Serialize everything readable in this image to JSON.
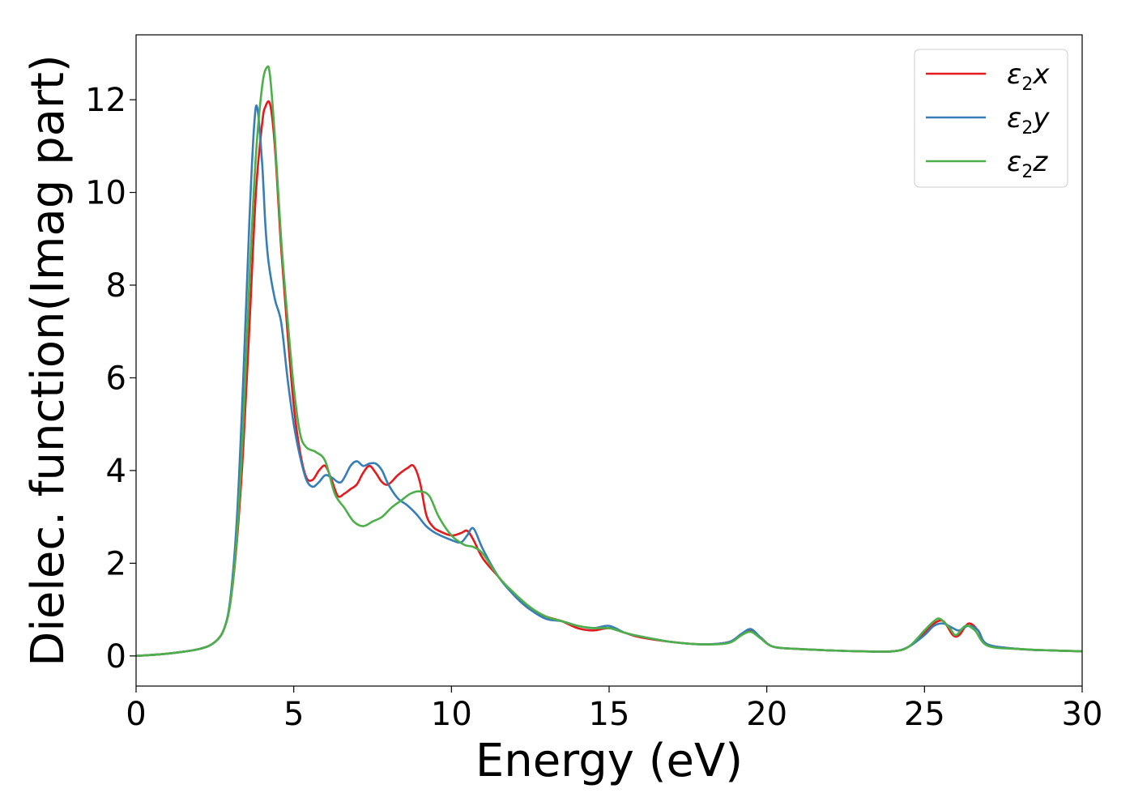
{
  "chart_data": {
    "type": "line",
    "title": "",
    "xlabel": "Energy (eV)",
    "ylabel": "Dielec. function(Imag part)",
    "xlim": [
      0,
      30
    ],
    "ylim": [
      -0.65,
      13.4
    ],
    "xticks": [
      0,
      5,
      10,
      15,
      20,
      25,
      30
    ],
    "yticks": [
      0,
      2,
      4,
      6,
      8,
      10,
      12
    ],
    "grid": false,
    "legend_position": "top-right",
    "series": [
      {
        "name": "ε₂x",
        "legend": {
          "base": "ε",
          "sub": "2",
          "suffix": "x"
        },
        "color": "#e41a1c",
        "x": [
          0,
          1,
          2,
          2.5,
          2.8,
          3.0,
          3.2,
          3.4,
          3.6,
          3.8,
          4.0,
          4.1,
          4.25,
          4.4,
          4.6,
          4.8,
          5.0,
          5.2,
          5.4,
          5.6,
          5.8,
          6.0,
          6.2,
          6.4,
          6.6,
          6.8,
          7.0,
          7.2,
          7.4,
          7.6,
          7.8,
          8.0,
          8.3,
          8.6,
          8.8,
          9.0,
          9.2,
          9.4,
          9.6,
          10.0,
          10.3,
          10.5,
          10.7,
          11.0,
          11.5,
          12.0,
          12.5,
          13.0,
          13.5,
          14.0,
          14.5,
          15.0,
          15.5,
          16,
          17,
          18,
          18.8,
          19.2,
          19.5,
          19.8,
          20.2,
          21,
          22,
          23,
          24,
          24.5,
          25.0,
          25.3,
          25.6,
          25.9,
          26.1,
          26.4,
          26.7,
          27.0,
          28,
          29,
          30
        ],
        "values": [
          0,
          0.05,
          0.15,
          0.3,
          0.6,
          1.2,
          2.5,
          4.5,
          7.2,
          10.0,
          11.5,
          11.85,
          11.9,
          11.0,
          8.8,
          7.0,
          5.4,
          4.4,
          3.85,
          3.8,
          4.0,
          4.1,
          3.8,
          3.45,
          3.5,
          3.6,
          3.7,
          3.95,
          4.1,
          3.95,
          3.75,
          3.7,
          3.9,
          4.05,
          4.1,
          3.75,
          3.05,
          2.8,
          2.7,
          2.6,
          2.65,
          2.7,
          2.5,
          2.1,
          1.7,
          1.3,
          1.0,
          0.85,
          0.75,
          0.6,
          0.55,
          0.6,
          0.5,
          0.4,
          0.3,
          0.25,
          0.3,
          0.45,
          0.55,
          0.4,
          0.2,
          0.15,
          0.12,
          0.1,
          0.1,
          0.2,
          0.5,
          0.7,
          0.75,
          0.45,
          0.45,
          0.7,
          0.55,
          0.25,
          0.15,
          0.12,
          0.1
        ]
      },
      {
        "name": "ε₂y",
        "legend": {
          "base": "ε",
          "sub": "2",
          "suffix": "y"
        },
        "color": "#377eb8",
        "x": [
          0,
          1,
          2,
          2.5,
          2.8,
          3.0,
          3.2,
          3.4,
          3.6,
          3.75,
          3.85,
          4.0,
          4.1,
          4.2,
          4.4,
          4.6,
          4.8,
          5.0,
          5.2,
          5.4,
          5.6,
          5.8,
          6.0,
          6.2,
          6.5,
          6.8,
          7.0,
          7.2,
          7.4,
          7.6,
          7.8,
          8.0,
          8.3,
          8.6,
          8.9,
          9.2,
          9.5,
          10.0,
          10.3,
          10.5,
          10.7,
          11.0,
          11.5,
          12.0,
          12.5,
          13.0,
          13.5,
          14.0,
          14.5,
          15.0,
          15.5,
          16,
          17,
          18,
          18.8,
          19.2,
          19.5,
          19.8,
          20.2,
          21,
          22,
          23,
          24,
          24.5,
          25.0,
          25.3,
          25.6,
          25.9,
          26.1,
          26.4,
          26.7,
          27.0,
          28,
          29,
          30
        ],
        "values": [
          0,
          0.05,
          0.15,
          0.3,
          0.6,
          1.3,
          3.0,
          6.0,
          9.5,
          11.5,
          11.8,
          10.6,
          9.3,
          8.5,
          7.7,
          7.2,
          6.0,
          5.0,
          4.3,
          3.8,
          3.65,
          3.75,
          3.9,
          3.85,
          3.75,
          4.1,
          4.2,
          4.1,
          4.15,
          4.15,
          4.0,
          3.7,
          3.4,
          3.25,
          3.05,
          2.8,
          2.65,
          2.5,
          2.45,
          2.6,
          2.75,
          2.3,
          1.7,
          1.3,
          1.0,
          0.8,
          0.75,
          0.65,
          0.6,
          0.65,
          0.5,
          0.42,
          0.3,
          0.25,
          0.3,
          0.48,
          0.58,
          0.4,
          0.2,
          0.15,
          0.12,
          0.1,
          0.1,
          0.2,
          0.45,
          0.65,
          0.7,
          0.6,
          0.55,
          0.65,
          0.55,
          0.25,
          0.15,
          0.12,
          0.1
        ]
      },
      {
        "name": "ε₂z",
        "legend": {
          "base": "ε",
          "sub": "2",
          "suffix": "z"
        },
        "color": "#4daf4a",
        "x": [
          0,
          1,
          2,
          2.5,
          2.8,
          3.0,
          3.2,
          3.4,
          3.6,
          3.8,
          4.0,
          4.15,
          4.25,
          4.4,
          4.6,
          4.8,
          5.0,
          5.2,
          5.4,
          5.7,
          6.0,
          6.3,
          6.6,
          6.9,
          7.2,
          7.5,
          7.8,
          8.1,
          8.4,
          8.7,
          9.0,
          9.3,
          9.6,
          10.0,
          10.4,
          10.7,
          11.0,
          11.5,
          12.0,
          12.5,
          13.0,
          13.5,
          14.0,
          14.5,
          15.0,
          15.5,
          16,
          17,
          18,
          18.8,
          19.2,
          19.5,
          19.8,
          20.2,
          21,
          22,
          23,
          24,
          24.5,
          25.0,
          25.3,
          25.5,
          25.8,
          26.0,
          26.3,
          26.6,
          27.0,
          28,
          29,
          30
        ],
        "values": [
          0,
          0.05,
          0.15,
          0.3,
          0.6,
          1.2,
          2.6,
          5.0,
          8.2,
          10.8,
          12.3,
          12.7,
          12.5,
          11.2,
          9.0,
          7.3,
          5.8,
          4.8,
          4.5,
          4.4,
          4.2,
          3.5,
          3.2,
          2.9,
          2.8,
          2.9,
          3.0,
          3.2,
          3.35,
          3.5,
          3.55,
          3.45,
          3.0,
          2.6,
          2.4,
          2.35,
          2.2,
          1.7,
          1.35,
          1.05,
          0.85,
          0.75,
          0.65,
          0.6,
          0.6,
          0.5,
          0.42,
          0.3,
          0.25,
          0.28,
          0.45,
          0.52,
          0.38,
          0.2,
          0.15,
          0.12,
          0.1,
          0.1,
          0.2,
          0.55,
          0.75,
          0.8,
          0.6,
          0.45,
          0.65,
          0.55,
          0.22,
          0.15,
          0.12,
          0.1
        ]
      }
    ]
  }
}
